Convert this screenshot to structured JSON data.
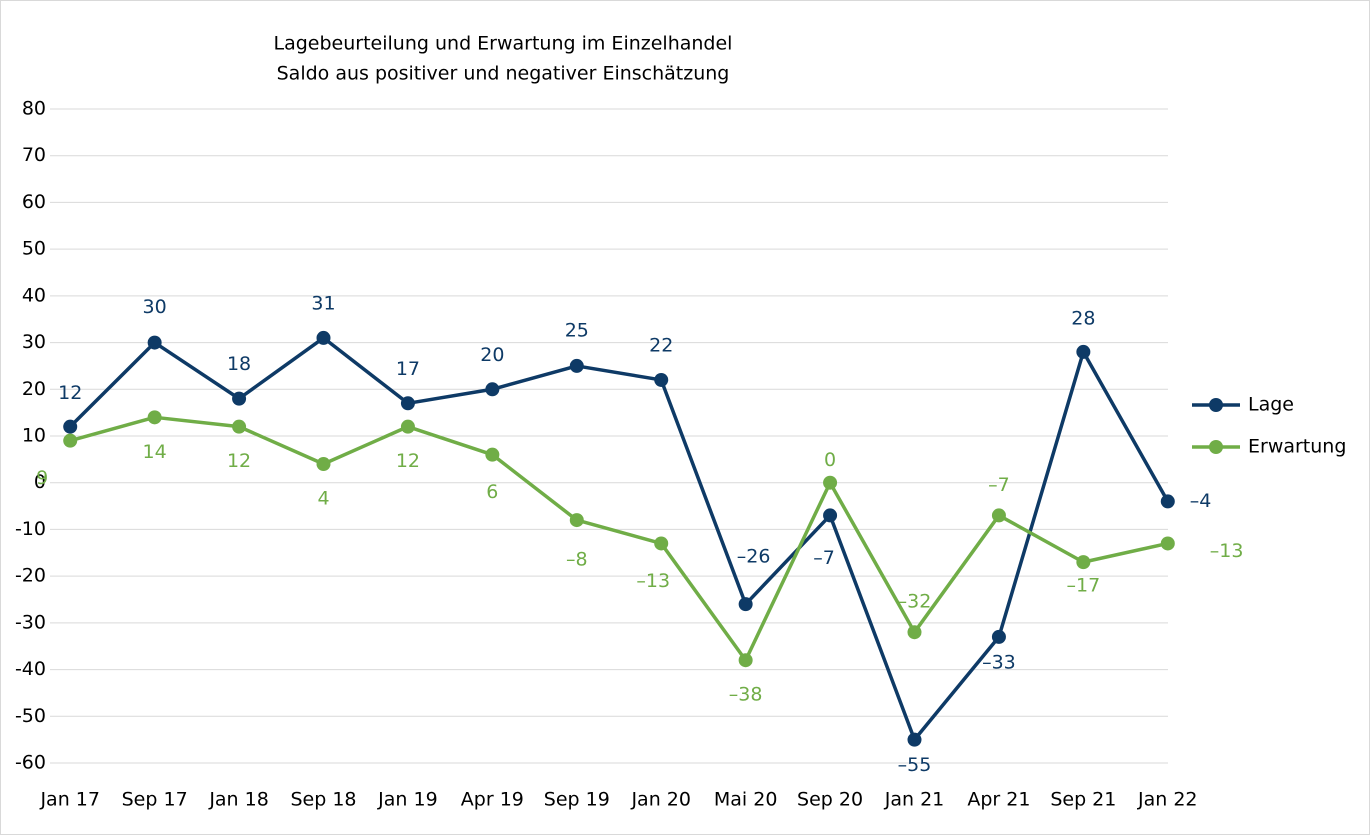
{
  "chart_data": {
    "type": "line",
    "title": "Lagebeurteilung und Erwartung im Einzelhandel",
    "subtitle": "Saldo aus positiver und negativer Einschätzung",
    "categories": [
      "Jan 17",
      "Sep 17",
      "Jan 18",
      "Sep 18",
      "Jan 19",
      "Apr 19",
      "Sep 19",
      "Jan 20",
      "Mai 20",
      "Sep 20",
      "Jan 21",
      "Apr 21",
      "Sep 21",
      "Jan 22"
    ],
    "series": [
      {
        "name": "Lage",
        "color": "#0e3a66",
        "values": [
          12,
          30,
          18,
          31,
          17,
          20,
          25,
          22,
          -26,
          -7,
          -55,
          -33,
          28,
          -4
        ],
        "value_labels": [
          "12",
          "30",
          "18",
          "31",
          "17",
          "20",
          "25",
          "22",
          "–26",
          "–7",
          "–55",
          "–33",
          "28",
          "–4"
        ]
      },
      {
        "name": "Erwartung",
        "color": "#70ad47",
        "values": [
          9,
          14,
          12,
          4,
          12,
          6,
          -8,
          -13,
          -38,
          0,
          -32,
          -7,
          -17,
          -13
        ],
        "value_labels": [
          "9",
          "14",
          "12",
          "4",
          "12",
          "6",
          "–8",
          "–13",
          "–38",
          "0",
          "–32",
          "–7",
          "–17",
          "–13"
        ]
      }
    ],
    "ylim": [
      -60,
      80
    ],
    "yticks": [
      -60,
      -50,
      -40,
      -30,
      -20,
      -10,
      0,
      10,
      20,
      30,
      40,
      50,
      60,
      70,
      80
    ],
    "grid": true,
    "legend": "right"
  }
}
